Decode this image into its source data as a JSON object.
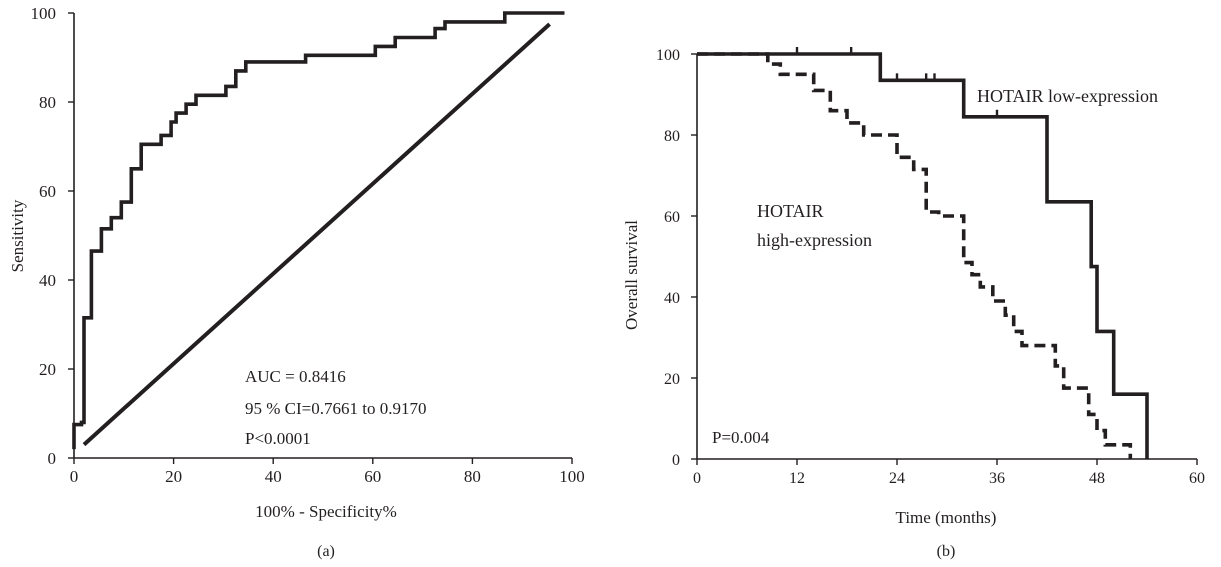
{
  "chart_data": [
    {
      "type": "line",
      "panel_label": "(a)",
      "xlabel": "100% - Specificity%",
      "ylabel": "Sensitivity",
      "xlim": [
        0,
        100
      ],
      "ylim": [
        0,
        100
      ],
      "x_ticks": [
        0,
        20,
        40,
        60,
        80,
        100
      ],
      "y_ticks": [
        0,
        20,
        40,
        60,
        80,
        100
      ],
      "annotations": [
        "AUC = 0.8416",
        "95 % CI=0.7661 to 0.9170",
        "P<0.0001"
      ],
      "grid": false,
      "series": [
        {
          "style": "solid-stepped",
          "x": [
            0,
            0,
            1.5,
            1.5,
            2,
            2,
            3.5,
            3.5,
            5.5,
            5.5,
            7.5,
            7.5,
            9.5,
            9.5,
            11.5,
            11.5,
            13.5,
            13.5,
            17.5,
            17.5,
            19.5,
            19.5,
            20.5,
            20.5,
            22.5,
            22.5,
            24.5,
            24.5,
            30.5,
            30.5,
            32.5,
            32.5,
            34.5,
            34.5,
            46.5,
            46.5,
            60.5,
            60.5,
            64.5,
            64.5,
            72.5,
            72.5,
            74.5,
            74.5,
            86.5,
            86.5,
            98.5
          ],
          "y": [
            2,
            7.5,
            7.5,
            8,
            8,
            31.5,
            31.5,
            46.5,
            46.5,
            51.5,
            51.5,
            54,
            54,
            57.5,
            57.5,
            65,
            65,
            70.5,
            70.5,
            72.5,
            72.5,
            75.5,
            75.5,
            77.5,
            77.5,
            79.5,
            79.5,
            81.5,
            81.5,
            83.5,
            83.5,
            87,
            87,
            89,
            89,
            90.5,
            90.5,
            92.5,
            92.5,
            94.5,
            94.5,
            96.5,
            96.5,
            98,
            98,
            100,
            100
          ]
        },
        {
          "style": "solid-diagonal",
          "x": [
            2,
            95.5
          ],
          "y": [
            3,
            97.5
          ]
        }
      ]
    },
    {
      "type": "line",
      "panel_label": "(b)",
      "xlabel": "Time (months)",
      "ylabel": "Overall survival",
      "xlim": [
        0,
        60
      ],
      "ylim": [
        0,
        100
      ],
      "x_ticks": [
        0,
        12,
        24,
        36,
        48,
        60
      ],
      "y_ticks": [
        0,
        20,
        40,
        60,
        80,
        100
      ],
      "annotations": [
        "P=0.004"
      ],
      "grid": false,
      "series": [
        {
          "name": "HOTAIR low-expression",
          "style": "solid",
          "x": [
            0,
            22,
            22,
            32,
            32,
            42,
            42,
            47.3,
            47.3,
            48,
            48,
            50,
            50,
            54,
            54
          ],
          "y": [
            100,
            100,
            93.5,
            93.5,
            84.5,
            84.5,
            63.5,
            63.5,
            47.5,
            47.5,
            31.5,
            31.5,
            16,
            16,
            0
          ]
        },
        {
          "name": "HOTAIR high-expression",
          "style": "dashed",
          "x": [
            0,
            8.5,
            8.5,
            10,
            10,
            14,
            14,
            16,
            16,
            18,
            18,
            20,
            20,
            24,
            24,
            26,
            26,
            27.5,
            27.5,
            29,
            29,
            32,
            32,
            33,
            33,
            34,
            34,
            35.5,
            35.5,
            37,
            37,
            38,
            38,
            39,
            39,
            43,
            43,
            44,
            44,
            47,
            47,
            48,
            48,
            49,
            49,
            50,
            50,
            52,
            52
          ],
          "y": [
            100,
            100,
            97.5,
            97.5,
            95,
            95,
            91,
            91,
            86,
            86,
            83,
            83,
            80,
            80,
            74.5,
            74.5,
            71.5,
            71.5,
            61,
            61,
            60,
            60,
            48.5,
            48.5,
            45.5,
            45.5,
            42.5,
            42.5,
            39,
            39,
            35.5,
            35.5,
            31.5,
            31.5,
            28,
            28,
            23,
            23,
            17.5,
            17.5,
            11,
            11,
            7,
            7,
            3.5,
            3.5,
            3.5,
            3.5,
            0
          ]
        }
      ],
      "censor_low_x": [
        12,
        18.5,
        24,
        27.5,
        28.5,
        36
      ],
      "series_labels": [
        "HOTAIR low-expression",
        "HOTAIR",
        "high-expression"
      ]
    }
  ]
}
